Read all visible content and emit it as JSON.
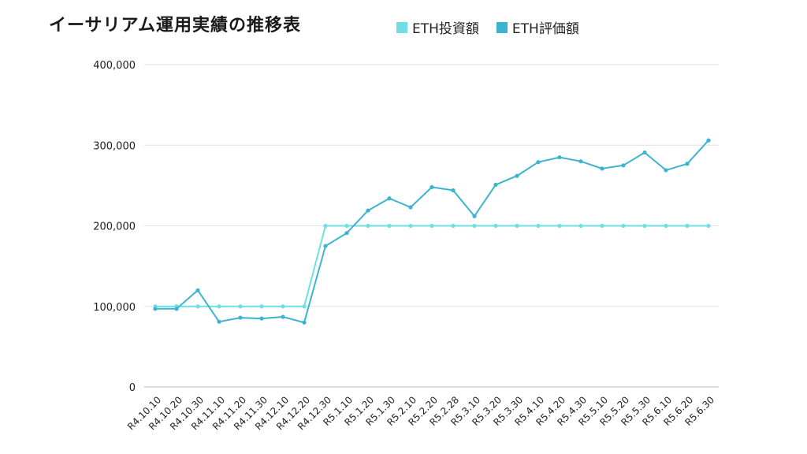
{
  "title": "イーサリアム運用実績の推移表",
  "colors": {
    "investment": "#6fdfe3",
    "valuation": "#3cb4d0",
    "grid": "#e2e2e2",
    "axis": "#bbbbbb"
  },
  "chart_data": {
    "type": "line",
    "categories": [
      "R4.10.10",
      "R4.10.20",
      "R4.10.30",
      "R4.11.10",
      "R4.11.20",
      "R4.11.30",
      "R4.12.10",
      "R4.12.20",
      "R4.12.30",
      "R5.1.10",
      "R5.1.20",
      "R5.1.30",
      "R5.2.10",
      "R5.2.20",
      "R5.2.28",
      "R5.3.10",
      "R5.3.20",
      "R5.3.30",
      "R5.4.10",
      "R5.4.20",
      "R5.4.30",
      "R5.5.10",
      "R5.5.20",
      "R5.5.30",
      "R5.6.10",
      "R5.6.20",
      "R5.6.30"
    ],
    "series": [
      {
        "name": "ETH投資額",
        "values": [
          100000,
          100000,
          100000,
          100000,
          100000,
          100000,
          100000,
          100000,
          200000,
          200000,
          200000,
          200000,
          200000,
          200000,
          200000,
          200000,
          200000,
          200000,
          200000,
          200000,
          200000,
          200000,
          200000,
          200000,
          200000,
          200000,
          200000
        ]
      },
      {
        "name": "ETH評価額",
        "values": [
          97000,
          97000,
          120000,
          81000,
          86000,
          85000,
          87000,
          80000,
          175000,
          191000,
          219000,
          234000,
          223000,
          248000,
          244000,
          212000,
          251000,
          262000,
          279000,
          285000,
          280000,
          271000,
          275000,
          291000,
          269000,
          277000,
          306000
        ]
      }
    ],
    "yticks": [
      "0",
      "100,000",
      "200,000",
      "300,000",
      "400,000"
    ],
    "ylim": [
      0,
      400000
    ],
    "grid": true,
    "legend_position": "top"
  }
}
